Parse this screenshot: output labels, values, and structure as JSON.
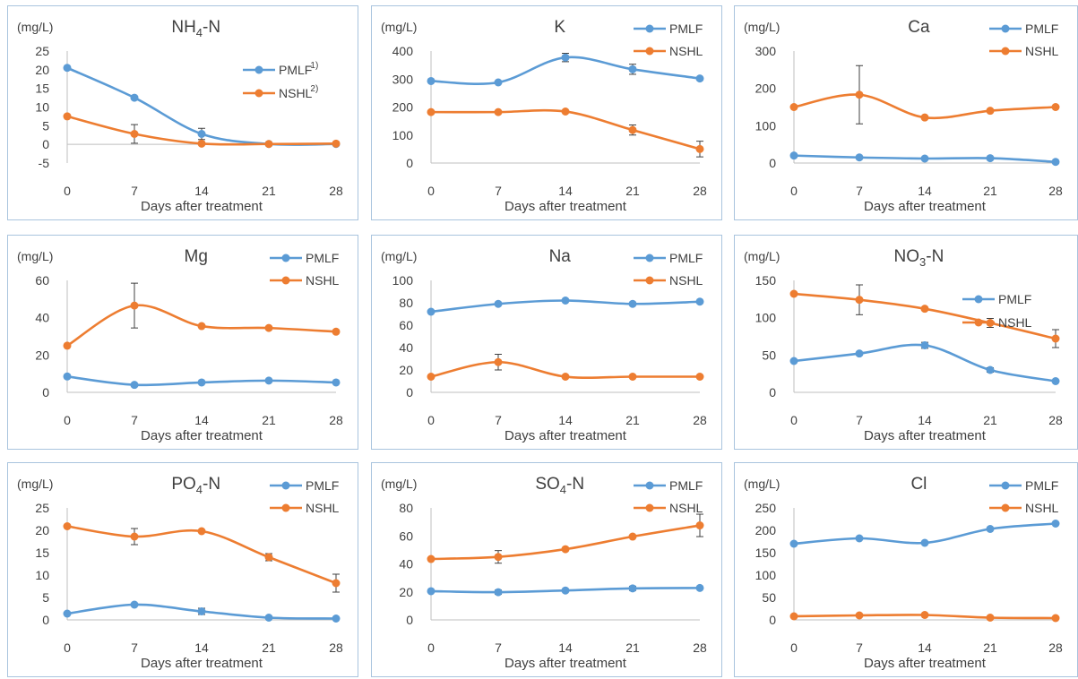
{
  "colors": {
    "PMLF": "#5b9bd5",
    "NSHL": "#ed7d31"
  },
  "chart_data": [
    {
      "type": "line",
      "title": "NH4-N",
      "title_main": "NH",
      "title_sub": "4",
      "title_tail": "-N",
      "unit": "(mg/L)",
      "xlabel": "Days  after treatment",
      "x": [
        0,
        7,
        14,
        21,
        28
      ],
      "ylim": [
        -5,
        25
      ],
      "yticks": [
        -5,
        0,
        5,
        10,
        15,
        20,
        25
      ],
      "legend_pos": "right",
      "series": [
        {
          "name": "PMLF",
          "sup": "1)",
          "values": [
            20.5,
            12.5,
            2.8,
            0.1,
            0.1
          ],
          "err": [
            0,
            0,
            1.5,
            0,
            0
          ]
        },
        {
          "name": "NSHL",
          "sup": "2)",
          "values": [
            7.5,
            2.8,
            0.2,
            0.1,
            0.2
          ],
          "err": [
            0,
            2.5,
            0,
            0,
            0
          ]
        }
      ]
    },
    {
      "type": "line",
      "title": "K",
      "title_main": "K",
      "title_sub": "",
      "title_tail": "",
      "unit": "(mg/L)",
      "xlabel": "Days  after treatment",
      "x": [
        0,
        7,
        14,
        21,
        28
      ],
      "ylim": [
        0,
        400
      ],
      "yticks": [
        0,
        100,
        200,
        300,
        400
      ],
      "legend_pos": "top-right",
      "series": [
        {
          "name": "PMLF",
          "values": [
            293,
            288,
            377,
            335,
            302
          ],
          "err": [
            0,
            0,
            15,
            18,
            0
          ]
        },
        {
          "name": "NSHL",
          "values": [
            182,
            182,
            184,
            118,
            50
          ],
          "err": [
            0,
            0,
            0,
            18,
            28
          ]
        }
      ]
    },
    {
      "type": "line",
      "title": "Ca",
      "title_main": "Ca",
      "title_sub": "",
      "title_tail": "",
      "unit": "(mg/L)",
      "xlabel": "Days  after treatment",
      "x": [
        0,
        7,
        14,
        21,
        28
      ],
      "ylim": [
        0,
        300
      ],
      "yticks": [
        0,
        100,
        200,
        300
      ],
      "legend_pos": "top-right",
      "series": [
        {
          "name": "PMLF",
          "values": [
            20,
            15,
            12,
            13,
            3
          ],
          "err": [
            0,
            0,
            0,
            0,
            0
          ]
        },
        {
          "name": "NSHL",
          "values": [
            150,
            183,
            122,
            140,
            150
          ],
          "err": [
            0,
            78,
            0,
            0,
            0
          ]
        }
      ]
    },
    {
      "type": "line",
      "title": "Mg",
      "title_main": "Mg",
      "title_sub": "",
      "title_tail": "",
      "unit": "(mg/L)",
      "xlabel": "Days  after treatment",
      "x": [
        0,
        7,
        14,
        21,
        28
      ],
      "ylim": [
        0,
        60
      ],
      "yticks": [
        0,
        20,
        40,
        60
      ],
      "legend_pos": "top-right",
      "series": [
        {
          "name": "PMLF",
          "values": [
            8.5,
            4,
            5.3,
            6.3,
            5.3
          ],
          "err": [
            0,
            0,
            0,
            0,
            0
          ]
        },
        {
          "name": "NSHL",
          "values": [
            25,
            46.5,
            35.5,
            34.5,
            32.5
          ],
          "err": [
            0,
            12,
            0,
            0,
            0
          ]
        }
      ]
    },
    {
      "type": "line",
      "title": "Na",
      "title_main": "Na",
      "title_sub": "",
      "title_tail": "",
      "unit": "(mg/L)",
      "xlabel": "Days  after treatment",
      "x": [
        0,
        7,
        14,
        21,
        28
      ],
      "ylim": [
        0,
        100
      ],
      "yticks": [
        0,
        20,
        40,
        60,
        80,
        100
      ],
      "legend_pos": "top-right",
      "series": [
        {
          "name": "PMLF",
          "values": [
            72,
            79,
            82,
            79,
            81
          ],
          "err": [
            0,
            0,
            0,
            0,
            0
          ]
        },
        {
          "name": "NSHL",
          "values": [
            14,
            27,
            14,
            14,
            14
          ],
          "err": [
            0,
            7,
            0,
            0,
            0
          ]
        }
      ]
    },
    {
      "type": "line",
      "title": "NO3-N",
      "title_main": "NO",
      "title_sub": "3",
      "title_tail": "-N",
      "unit": "(mg/L)",
      "xlabel": "Days  after treatment",
      "x": [
        0,
        7,
        14,
        21,
        28
      ],
      "ylim": [
        0,
        150
      ],
      "yticks": [
        0,
        50,
        100,
        150
      ],
      "legend_pos": "right",
      "series": [
        {
          "name": "PMLF",
          "values": [
            42,
            52,
            63,
            30,
            15
          ],
          "err": [
            0,
            0,
            4,
            3,
            0
          ]
        },
        {
          "name": "NSHL",
          "values": [
            132,
            124,
            112,
            93,
            72
          ],
          "err": [
            0,
            20,
            0,
            6,
            12
          ]
        }
      ]
    },
    {
      "type": "line",
      "title": "PO4-N",
      "title_main": "PO",
      "title_sub": "4",
      "title_tail": "-N",
      "unit": "(mg/L)",
      "xlabel": "Days  after treatment",
      "x": [
        0,
        7,
        14,
        21,
        28
      ],
      "ylim": [
        0,
        25
      ],
      "yticks": [
        0,
        5,
        10,
        15,
        20,
        25
      ],
      "legend_pos": "top-right",
      "series": [
        {
          "name": "PMLF",
          "values": [
            1.4,
            3.4,
            1.9,
            0.5,
            0.3
          ],
          "err": [
            0,
            0,
            0.7,
            0,
            0
          ]
        },
        {
          "name": "NSHL",
          "values": [
            20.9,
            18.6,
            19.8,
            14,
            8.2
          ],
          "err": [
            0,
            1.8,
            0,
            0.8,
            2
          ]
        }
      ]
    },
    {
      "type": "line",
      "title": "SO4-N",
      "title_main": "SO",
      "title_sub": "4",
      "title_tail": "-N",
      "unit": "(mg/L)",
      "xlabel": "Days  after treatment",
      "x": [
        0,
        7,
        14,
        21,
        28
      ],
      "ylim": [
        0,
        80
      ],
      "yticks": [
        0,
        20,
        40,
        60,
        80
      ],
      "legend_pos": "top-right",
      "series": [
        {
          "name": "PMLF",
          "values": [
            20.5,
            19.8,
            21,
            22.5,
            22.8
          ],
          "err": [
            0,
            1.5,
            0,
            1.5,
            0
          ]
        },
        {
          "name": "NSHL",
          "values": [
            43.5,
            45,
            50.5,
            59.5,
            67.5
          ],
          "err": [
            0,
            4.5,
            0,
            0,
            8
          ]
        }
      ]
    },
    {
      "type": "line",
      "title": "Cl",
      "title_main": "Cl",
      "title_sub": "",
      "title_tail": "",
      "unit": "(mg/L)",
      "xlabel": "Days  after treatment",
      "x": [
        0,
        7,
        14,
        21,
        28
      ],
      "ylim": [
        0,
        250
      ],
      "yticks": [
        0,
        50,
        100,
        150,
        200,
        250
      ],
      "legend_pos": "top-right",
      "series": [
        {
          "name": "PMLF",
          "values": [
            170,
            182,
            172,
            203,
            215
          ],
          "err": [
            0,
            0,
            0,
            0,
            0
          ]
        },
        {
          "name": "NSHL",
          "values": [
            8,
            10,
            11,
            5,
            4
          ],
          "err": [
            0,
            0,
            0,
            0,
            0
          ]
        }
      ]
    }
  ]
}
